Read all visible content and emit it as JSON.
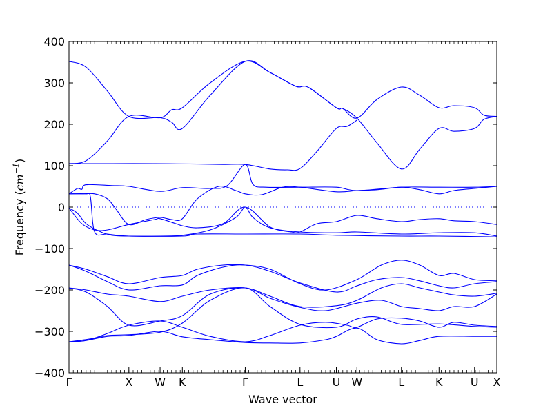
{
  "chart_data": {
    "type": "line",
    "title": "",
    "xlabel": "Wave vector",
    "ylabel": "Frequency ($cm^{-1}$)",
    "ylabel_parts": {
      "text": "Frequency (",
      "unit": "cm",
      "exp": "−1",
      "close": ")"
    },
    "ylim": [
      -400,
      400
    ],
    "yticks": [
      -400,
      -300,
      -200,
      -100,
      0,
      100,
      200,
      300,
      400
    ],
    "ytick_labels": [
      "−400",
      "−300",
      "−200",
      "−100",
      "0",
      "100",
      "200",
      "300",
      "400"
    ],
    "grid": false,
    "legend": "none",
    "zero_line": {
      "y": 0,
      "style": "dotted"
    },
    "line_color": "#0000ff",
    "high_symmetry_points": [
      {
        "label": "Γ",
        "x": 0.0
      },
      {
        "label": "X",
        "x": 0.14
      },
      {
        "label": "W",
        "x": 0.213
      },
      {
        "label": "K",
        "x": 0.265
      },
      {
        "label": "Γ",
        "x": 0.412
      },
      {
        "label": "L",
        "x": 0.54
      },
      {
        "label": "U",
        "x": 0.625
      },
      {
        "label": "W",
        "x": 0.673
      },
      {
        "label": "L",
        "x": 0.777
      },
      {
        "label": "K",
        "x": 0.865
      },
      {
        "label": "U",
        "x": 0.948
      },
      {
        "label": "X",
        "x": 1.0
      }
    ],
    "series": [
      {
        "points": [
          [
            0.0,
            352
          ],
          [
            0.04,
            338
          ],
          [
            0.09,
            280
          ],
          [
            0.14,
            219
          ],
          [
            0.213,
            216
          ],
          [
            0.24,
            205
          ],
          [
            0.265,
            190
          ],
          [
            0.33,
            270
          ],
          [
            0.412,
            352
          ],
          [
            0.47,
            325
          ],
          [
            0.53,
            292
          ],
          [
            0.56,
            289
          ],
          [
            0.625,
            240
          ],
          [
            0.64,
            238
          ],
          [
            0.673,
            215
          ],
          [
            0.72,
            260
          ],
          [
            0.777,
            290
          ],
          [
            0.82,
            270
          ],
          [
            0.865,
            240
          ],
          [
            0.9,
            245
          ],
          [
            0.948,
            240
          ],
          [
            0.97,
            222
          ],
          [
            1.0,
            219
          ]
        ]
      },
      {
        "points": [
          [
            0.0,
            105
          ],
          [
            0.04,
            112
          ],
          [
            0.09,
            160
          ],
          [
            0.14,
            219
          ],
          [
            0.213,
            216
          ],
          [
            0.24,
            235
          ],
          [
            0.265,
            240
          ],
          [
            0.33,
            300
          ],
          [
            0.412,
            352
          ],
          [
            0.47,
            325
          ],
          [
            0.53,
            292
          ],
          [
            0.56,
            289
          ],
          [
            0.625,
            240
          ],
          [
            0.64,
            238
          ],
          [
            0.673,
            215
          ],
          [
            0.72,
            155
          ],
          [
            0.777,
            92
          ],
          [
            0.82,
            140
          ],
          [
            0.865,
            190
          ],
          [
            0.9,
            183
          ],
          [
            0.948,
            190
          ],
          [
            0.97,
            212
          ],
          [
            1.0,
            219
          ]
        ]
      },
      {
        "points": [
          [
            0.0,
            105
          ],
          [
            0.1,
            105
          ],
          [
            0.2,
            105
          ],
          [
            0.3,
            104
          ],
          [
            0.36,
            103
          ],
          [
            0.412,
            103
          ],
          [
            0.47,
            92
          ],
          [
            0.51,
            90
          ],
          [
            0.54,
            93
          ],
          [
            0.58,
            135
          ],
          [
            0.625,
            190
          ],
          [
            0.65,
            195
          ],
          [
            0.673,
            210
          ]
        ]
      },
      {
        "points": [
          [
            0.0,
            32
          ],
          [
            0.02,
            45
          ],
          [
            0.03,
            43
          ],
          [
            0.04,
            54
          ],
          [
            0.1,
            52
          ],
          [
            0.14,
            50
          ],
          [
            0.213,
            38
          ],
          [
            0.265,
            47
          ],
          [
            0.33,
            45
          ],
          [
            0.37,
            52
          ],
          [
            0.412,
            103
          ],
          [
            0.43,
            55
          ],
          [
            0.46,
            48
          ],
          [
            0.54,
            48
          ],
          [
            0.625,
            48
          ],
          [
            0.673,
            40
          ],
          [
            0.777,
            48
          ],
          [
            0.865,
            48
          ],
          [
            0.948,
            48
          ],
          [
            1.0,
            50
          ]
        ]
      },
      {
        "points": [
          [
            0.0,
            32
          ],
          [
            0.03,
            32
          ],
          [
            0.06,
            32
          ],
          [
            0.09,
            20
          ],
          [
            0.11,
            -5
          ],
          [
            0.14,
            -42
          ],
          [
            0.18,
            -30
          ],
          [
            0.213,
            -25
          ],
          [
            0.24,
            -30
          ],
          [
            0.265,
            -28
          ],
          [
            0.3,
            20
          ],
          [
            0.35,
            50
          ],
          [
            0.39,
            40
          ],
          [
            0.412,
            32
          ],
          [
            0.45,
            30
          ],
          [
            0.5,
            48
          ],
          [
            0.54,
            48
          ],
          [
            0.625,
            37
          ],
          [
            0.673,
            40
          ],
          [
            0.72,
            42
          ],
          [
            0.777,
            48
          ],
          [
            0.82,
            42
          ],
          [
            0.865,
            32
          ],
          [
            0.9,
            40
          ],
          [
            0.948,
            45
          ],
          [
            1.0,
            50
          ]
        ]
      },
      {
        "points": [
          [
            0.0,
            -2
          ],
          [
            0.03,
            -40
          ],
          [
            0.06,
            -55
          ],
          [
            0.09,
            -55
          ],
          [
            0.14,
            -42
          ],
          [
            0.2,
            -30
          ],
          [
            0.213,
            -28
          ],
          [
            0.25,
            -40
          ],
          [
            0.265,
            -45
          ],
          [
            0.3,
            -50
          ],
          [
            0.36,
            -40
          ],
          [
            0.412,
            0
          ],
          [
            0.47,
            -48
          ],
          [
            0.52,
            -60
          ],
          [
            0.54,
            -60
          ],
          [
            0.58,
            -40
          ],
          [
            0.625,
            -35
          ],
          [
            0.673,
            -20
          ],
          [
            0.72,
            -28
          ],
          [
            0.777,
            -35
          ],
          [
            0.82,
            -30
          ],
          [
            0.865,
            -28
          ],
          [
            0.9,
            -33
          ],
          [
            0.948,
            -35
          ],
          [
            1.0,
            -42
          ]
        ]
      },
      {
        "points": [
          [
            0.0,
            -2
          ],
          [
            0.02,
            -15
          ],
          [
            0.04,
            -40
          ],
          [
            0.07,
            -58
          ],
          [
            0.1,
            -68
          ],
          [
            0.14,
            -70
          ],
          [
            0.213,
            -70
          ],
          [
            0.265,
            -68
          ],
          [
            0.33,
            -55
          ],
          [
            0.39,
            -25
          ],
          [
            0.412,
            0
          ],
          [
            0.43,
            -25
          ],
          [
            0.47,
            -50
          ],
          [
            0.54,
            -60
          ],
          [
            0.625,
            -62
          ],
          [
            0.673,
            -60
          ],
          [
            0.777,
            -65
          ],
          [
            0.865,
            -62
          ],
          [
            0.948,
            -62
          ],
          [
            1.0,
            -70
          ]
        ]
      },
      {
        "points": [
          [
            0.0,
            32
          ],
          [
            0.04,
            32
          ],
          [
            0.05,
            25
          ],
          [
            0.06,
            -60
          ],
          [
            0.09,
            -65
          ],
          [
            0.14,
            -70
          ],
          [
            0.265,
            -70
          ],
          [
            0.3,
            -65
          ],
          [
            0.412,
            -65
          ],
          [
            0.54,
            -65
          ],
          [
            0.625,
            -68
          ],
          [
            0.777,
            -70
          ],
          [
            0.865,
            -70
          ],
          [
            1.0,
            -72
          ]
        ]
      },
      {
        "points": [
          [
            0.0,
            -140
          ],
          [
            0.04,
            -150
          ],
          [
            0.09,
            -168
          ],
          [
            0.14,
            -185
          ],
          [
            0.213,
            -170
          ],
          [
            0.265,
            -165
          ],
          [
            0.3,
            -150
          ],
          [
            0.36,
            -140
          ],
          [
            0.412,
            -140
          ],
          [
            0.47,
            -150
          ],
          [
            0.54,
            -185
          ],
          [
            0.6,
            -200
          ],
          [
            0.673,
            -175
          ],
          [
            0.73,
            -140
          ],
          [
            0.777,
            -128
          ],
          [
            0.82,
            -140
          ],
          [
            0.865,
            -165
          ],
          [
            0.9,
            -160
          ],
          [
            0.948,
            -175
          ],
          [
            1.0,
            -178
          ]
        ]
      },
      {
        "points": [
          [
            0.0,
            -140
          ],
          [
            0.04,
            -155
          ],
          [
            0.09,
            -180
          ],
          [
            0.14,
            -200
          ],
          [
            0.213,
            -190
          ],
          [
            0.265,
            -188
          ],
          [
            0.3,
            -165
          ],
          [
            0.36,
            -145
          ],
          [
            0.412,
            -140
          ],
          [
            0.47,
            -155
          ],
          [
            0.54,
            -183
          ],
          [
            0.625,
            -205
          ],
          [
            0.673,
            -190
          ],
          [
            0.72,
            -175
          ],
          [
            0.777,
            -170
          ],
          [
            0.82,
            -178
          ],
          [
            0.865,
            -190
          ],
          [
            0.9,
            -195
          ],
          [
            0.948,
            -185
          ],
          [
            1.0,
            -180
          ]
        ]
      },
      {
        "points": [
          [
            0.0,
            -195
          ],
          [
            0.04,
            -205
          ],
          [
            0.09,
            -240
          ],
          [
            0.14,
            -285
          ],
          [
            0.213,
            -275
          ],
          [
            0.265,
            -262
          ],
          [
            0.33,
            -210
          ],
          [
            0.412,
            -195
          ],
          [
            0.47,
            -220
          ],
          [
            0.54,
            -242
          ],
          [
            0.6,
            -250
          ],
          [
            0.673,
            -232
          ],
          [
            0.73,
            -225
          ],
          [
            0.777,
            -240
          ],
          [
            0.82,
            -245
          ],
          [
            0.865,
            -250
          ],
          [
            0.9,
            -240
          ],
          [
            0.948,
            -240
          ],
          [
            1.0,
            -210
          ]
        ]
      },
      {
        "points": [
          [
            0.0,
            -195
          ],
          [
            0.04,
            -200
          ],
          [
            0.09,
            -210
          ],
          [
            0.14,
            -215
          ],
          [
            0.213,
            -228
          ],
          [
            0.265,
            -215
          ],
          [
            0.33,
            -200
          ],
          [
            0.412,
            -195
          ],
          [
            0.47,
            -215
          ],
          [
            0.54,
            -240
          ],
          [
            0.625,
            -238
          ],
          [
            0.673,
            -225
          ],
          [
            0.73,
            -195
          ],
          [
            0.777,
            -185
          ],
          [
            0.82,
            -195
          ],
          [
            0.865,
            -205
          ],
          [
            0.9,
            -212
          ],
          [
            0.948,
            -215
          ],
          [
            1.0,
            -208
          ]
        ]
      },
      {
        "points": [
          [
            0.0,
            -325
          ],
          [
            0.04,
            -322
          ],
          [
            0.09,
            -305
          ],
          [
            0.14,
            -285
          ],
          [
            0.213,
            -275
          ],
          [
            0.265,
            -290
          ],
          [
            0.33,
            -312
          ],
          [
            0.412,
            -325
          ],
          [
            0.47,
            -310
          ],
          [
            0.54,
            -285
          ],
          [
            0.6,
            -278
          ],
          [
            0.65,
            -285
          ],
          [
            0.673,
            -290
          ],
          [
            0.72,
            -270
          ],
          [
            0.777,
            -268
          ],
          [
            0.82,
            -275
          ],
          [
            0.865,
            -290
          ],
          [
            0.9,
            -278
          ],
          [
            0.948,
            -285
          ],
          [
            1.0,
            -288
          ]
        ]
      },
      {
        "points": [
          [
            0.0,
            -325
          ],
          [
            0.04,
            -322
          ],
          [
            0.09,
            -312
          ],
          [
            0.14,
            -310
          ],
          [
            0.213,
            -300
          ],
          [
            0.265,
            -313
          ],
          [
            0.33,
            -320
          ],
          [
            0.412,
            -327
          ],
          [
            0.47,
            -328
          ],
          [
            0.54,
            -328
          ],
          [
            0.6,
            -320
          ],
          [
            0.625,
            -312
          ],
          [
            0.673,
            -292
          ],
          [
            0.72,
            -320
          ],
          [
            0.777,
            -330
          ],
          [
            0.82,
            -322
          ],
          [
            0.865,
            -312
          ],
          [
            0.948,
            -312
          ],
          [
            1.0,
            -312
          ]
        ]
      },
      {
        "points": [
          [
            0.0,
            -325
          ],
          [
            0.05,
            -318
          ],
          [
            0.09,
            -310
          ],
          [
            0.14,
            -308
          ],
          [
            0.213,
            -302
          ],
          [
            0.265,
            -280
          ],
          [
            0.33,
            -225
          ],
          [
            0.412,
            -195
          ],
          [
            0.47,
            -240
          ],
          [
            0.54,
            -283
          ],
          [
            0.625,
            -290
          ],
          [
            0.673,
            -270
          ],
          [
            0.72,
            -265
          ],
          [
            0.777,
            -283
          ],
          [
            0.865,
            -282
          ],
          [
            0.948,
            -288
          ],
          [
            1.0,
            -290
          ]
        ]
      }
    ]
  }
}
